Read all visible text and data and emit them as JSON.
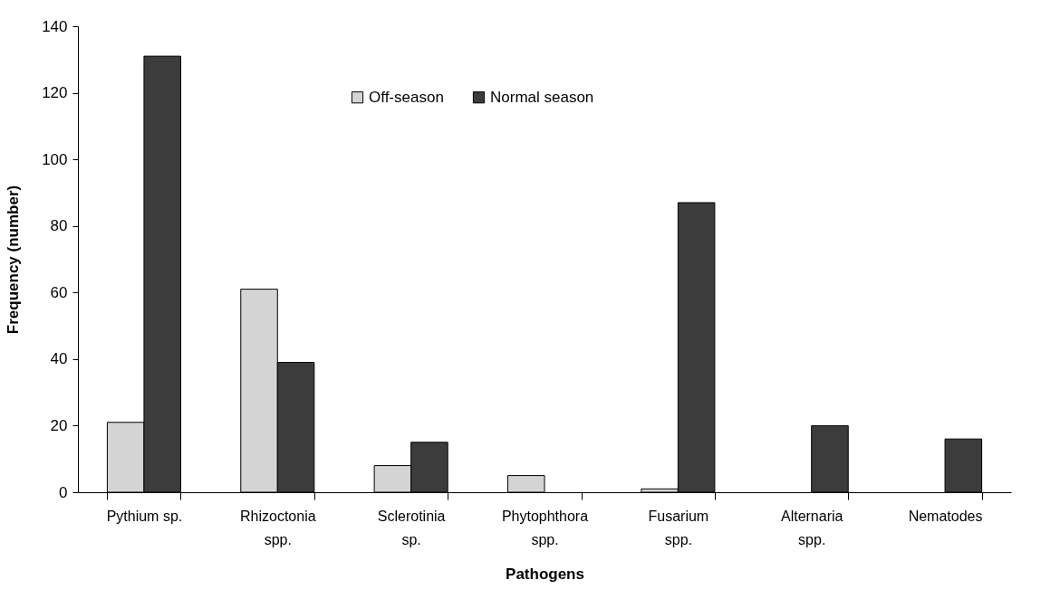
{
  "chart_data": {
    "type": "bar",
    "xlabel": "Pathogens",
    "ylabel": "Frequency (number)",
    "categories": [
      "Pythium sp.",
      "Rhizoctonia spp.",
      "Sclerotinia sp.",
      "Phytophthora spp.",
      "Fusarium spp.",
      "Alternaria spp.",
      "Nematodes"
    ],
    "series": [
      {
        "name": "Off-season",
        "color": "#d4d4d4",
        "values": [
          21,
          61,
          8,
          5,
          1,
          null,
          null
        ]
      },
      {
        "name": "Normal season",
        "color": "#3c3c3c",
        "values": [
          131,
          39,
          15,
          null,
          87,
          20,
          16
        ]
      }
    ],
    "ylim": [
      0,
      140
    ],
    "yticks": [
      0,
      20,
      40,
      60,
      80,
      100,
      120,
      140
    ],
    "grid": false,
    "legend": "top"
  }
}
